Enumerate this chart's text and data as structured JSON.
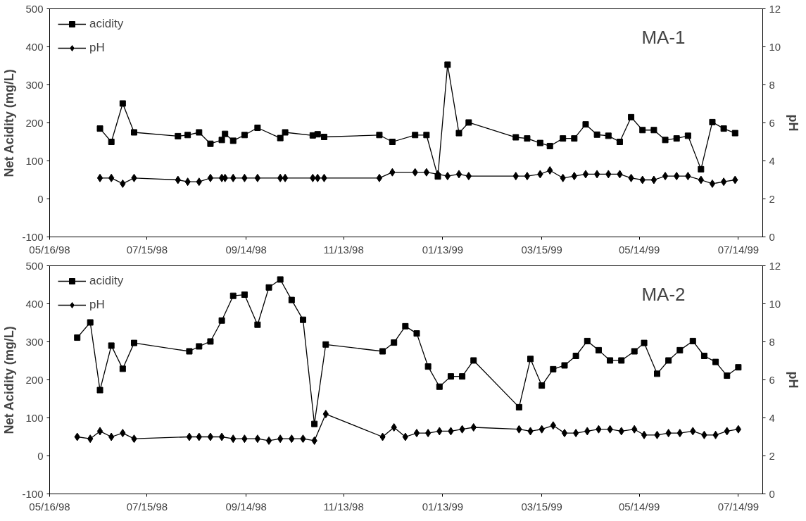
{
  "chart_data": [
    {
      "type": "line",
      "ylabel": "Net Acidity (mg/L)",
      "y2label": "pH",
      "annotations": [
        "MA-1"
      ],
      "legend": "top left",
      "grid": false,
      "x": [
        "1998-06-16",
        "1998-06-23",
        "1998-06-30",
        "1998-07-07",
        "1998-08-03",
        "1998-08-09",
        "1998-08-16",
        "1998-08-23",
        "1998-08-30",
        "1998-09-01",
        "1998-09-06",
        "1998-09-13",
        "1998-09-21",
        "1998-10-05",
        "1998-10-08",
        "1998-10-25",
        "1998-10-28",
        "1998-11-01",
        "1998-12-05",
        "1998-12-13",
        "1998-12-27",
        "1999-01-03",
        "1999-01-10",
        "1999-01-16",
        "1999-01-23",
        "1999-01-29",
        "1999-02-27",
        "1999-03-06",
        "1999-03-14",
        "1999-03-20",
        "1999-03-28",
        "1999-04-04",
        "1999-04-11",
        "1999-04-18",
        "1999-04-25",
        "1999-05-02",
        "1999-05-09",
        "1999-05-16",
        "1999-05-23",
        "1999-05-30",
        "1999-06-06",
        "1999-06-13",
        "1999-06-21",
        "1999-06-28",
        "1999-07-05",
        "1999-07-12"
      ],
      "series": [
        {
          "name": "acidity",
          "color": "#000000",
          "marker": "square",
          "values": [
            185,
            150,
            251,
            175,
            165,
            168,
            175,
            145,
            155,
            171,
            153,
            168,
            187,
            160,
            175,
            167,
            170,
            163,
            168,
            150,
            168,
            168,
            59,
            353,
            173,
            201,
            162,
            159,
            147,
            139,
            159,
            159,
            196,
            169,
            166,
            150,
            215,
            181,
            181,
            155,
            159,
            166,
            78,
            202,
            185,
            173
          ]
        },
        {
          "name": "pH",
          "color": "#000000",
          "marker": "diamond",
          "axis": "y2",
          "values": [
            3.1,
            3.1,
            2.8,
            3.1,
            3.0,
            2.9,
            2.9,
            3.1,
            3.1,
            3.1,
            3.1,
            3.1,
            3.1,
            3.1,
            3.1,
            3.1,
            3.1,
            3.1,
            3.1,
            3.4,
            3.4,
            3.4,
            3.3,
            3.2,
            3.3,
            3.2,
            3.2,
            3.2,
            3.3,
            3.5,
            3.1,
            3.2,
            3.3,
            3.3,
            3.3,
            3.3,
            3.1,
            3.0,
            3.0,
            3.2,
            3.2,
            3.2,
            3.0,
            2.8,
            2.9,
            3.0
          ]
        }
      ],
      "xlim": [
        "1998-05-16",
        "1999-07-29"
      ],
      "xticks": [
        {
          "value": "1998-05-16",
          "label": "05/16/98"
        },
        {
          "value": "1998-07-15",
          "label": "07/15/98"
        },
        {
          "value": "1998-09-14",
          "label": "09/14/98"
        },
        {
          "value": "1998-11-13",
          "label": "11/13/98"
        },
        {
          "value": "1999-01-13",
          "label": "01/13/99"
        },
        {
          "value": "1999-03-15",
          "label": "03/15/99"
        },
        {
          "value": "1999-05-14",
          "label": "05/14/99"
        },
        {
          "value": "1999-07-14",
          "label": "07/14/99"
        }
      ],
      "ylim": [
        -100,
        500
      ],
      "yticks": [
        -100,
        0,
        100,
        200,
        300,
        400,
        500
      ],
      "y2lim": [
        0,
        12
      ],
      "y2ticks": [
        0,
        2,
        4,
        6,
        8,
        10,
        12
      ]
    },
    {
      "type": "line",
      "ylabel": "Net Acidity (mg/L)",
      "y2label": "pH",
      "annotations": [
        "MA-2"
      ],
      "legend": "top left",
      "grid": false,
      "x": [
        "1998-06-02",
        "1998-06-10",
        "1998-06-16",
        "1998-06-23",
        "1998-06-30",
        "1998-07-07",
        "1998-08-10",
        "1998-08-16",
        "1998-08-23",
        "1998-08-30",
        "1998-09-06",
        "1998-09-13",
        "1998-09-21",
        "1998-09-28",
        "1998-10-05",
        "1998-10-12",
        "1998-10-19",
        "1998-10-26",
        "1998-11-02",
        "1998-12-07",
        "1998-12-14",
        "1998-12-21",
        "1998-12-28",
        "1999-01-04",
        "1999-01-11",
        "1999-01-18",
        "1999-01-25",
        "1999-02-01",
        "1999-03-01",
        "1999-03-08",
        "1999-03-15",
        "1999-03-22",
        "1999-03-29",
        "1999-04-05",
        "1999-04-12",
        "1999-04-19",
        "1999-04-26",
        "1999-05-03",
        "1999-05-11",
        "1999-05-17",
        "1999-05-25",
        "1999-06-01",
        "1999-06-08",
        "1999-06-16",
        "1999-06-23",
        "1999-06-30",
        "1999-07-07",
        "1999-07-14"
      ],
      "series": [
        {
          "name": "acidity",
          "color": "#000000",
          "marker": "square",
          "values": [
            311,
            351,
            173,
            290,
            229,
            297,
            275,
            288,
            301,
            356,
            421,
            424,
            345,
            443,
            464,
            410,
            358,
            84,
            293,
            275,
            298,
            341,
            322,
            235,
            182,
            209,
            209,
            251,
            128,
            255,
            185,
            228,
            238,
            263,
            302,
            278,
            251,
            251,
            275,
            297,
            216,
            251,
            278,
            302,
            263,
            247,
            211,
            233
          ]
        },
        {
          "name": "pH",
          "color": "#000000",
          "marker": "diamond",
          "axis": "y2",
          "values": [
            3.0,
            2.9,
            3.3,
            3.0,
            3.2,
            2.9,
            3.0,
            3.0,
            3.0,
            3.0,
            2.9,
            2.9,
            2.9,
            2.8,
            2.9,
            2.9,
            2.9,
            2.8,
            4.2,
            3.0,
            3.5,
            3.0,
            3.2,
            3.2,
            3.3,
            3.3,
            3.4,
            3.5,
            3.4,
            3.3,
            3.4,
            3.6,
            3.2,
            3.2,
            3.3,
            3.4,
            3.4,
            3.3,
            3.4,
            3.1,
            3.1,
            3.2,
            3.2,
            3.3,
            3.1,
            3.1,
            3.3,
            3.4
          ]
        }
      ],
      "xlim": [
        "1998-05-16",
        "1999-07-29"
      ],
      "xticks": [
        {
          "value": "1998-05-16",
          "label": "05/16/98"
        },
        {
          "value": "1998-07-15",
          "label": "07/15/98"
        },
        {
          "value": "1998-09-14",
          "label": "09/14/98"
        },
        {
          "value": "1998-11-13",
          "label": "11/13/98"
        },
        {
          "value": "1999-01-13",
          "label": "01/13/99"
        },
        {
          "value": "1999-03-15",
          "label": "03/15/99"
        },
        {
          "value": "1999-05-14",
          "label": "05/14/99"
        },
        {
          "value": "1999-07-14",
          "label": "07/14/99"
        }
      ],
      "ylim": [
        -100,
        500
      ],
      "yticks": [
        -100,
        0,
        100,
        200,
        300,
        400,
        500
      ],
      "y2lim": [
        0,
        12
      ],
      "y2ticks": [
        0,
        2,
        4,
        6,
        8,
        10,
        12
      ]
    }
  ]
}
